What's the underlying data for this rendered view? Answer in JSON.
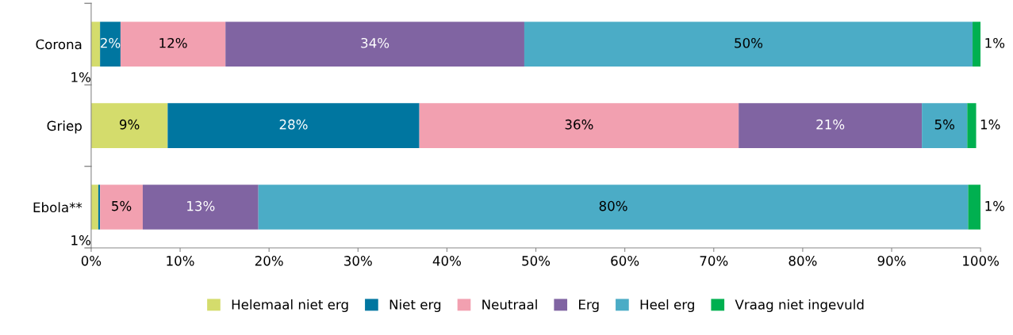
{
  "chart_data": {
    "type": "bar",
    "orientation": "horizontal",
    "stacked": true,
    "categories": [
      "Corona",
      "Griep",
      "Ebola**"
    ],
    "series": [
      {
        "name": "Helemaal niet erg",
        "color": "#d4dc6c",
        "values": [
          1.0,
          8.6,
          0.8
        ],
        "value_labels": [
          "1%",
          "9%",
          "1%"
        ]
      },
      {
        "name": "Niet erg",
        "color": "#0076a0",
        "values": [
          2.3,
          28.3,
          0.2
        ],
        "value_labels": [
          "2%",
          "28%",
          null
        ]
      },
      {
        "name": "Neutraal",
        "color": "#f2a0b0",
        "values": [
          11.8,
          35.9,
          4.8
        ],
        "value_labels": [
          "12%",
          "36%",
          "5%"
        ]
      },
      {
        "name": "Erg",
        "color": "#8064a2",
        "values": [
          33.6,
          20.6,
          13.0
        ],
        "value_labels": [
          "34%",
          "21%",
          "13%"
        ]
      },
      {
        "name": "Heel erg",
        "color": "#4bacc6",
        "values": [
          50.4,
          5.1,
          79.8
        ],
        "value_labels": [
          "50%",
          "5%",
          "80%"
        ]
      },
      {
        "name": "Vraag niet ingevuld",
        "color": "#00b050",
        "values": [
          0.9,
          1.0,
          1.4
        ],
        "value_labels": [
          "1%",
          "1%",
          "1%"
        ]
      }
    ],
    "xlim": [
      0,
      100
    ],
    "xticks": [
      {
        "value": 0,
        "label": "0%"
      },
      {
        "value": 10,
        "label": "10%"
      },
      {
        "value": 20,
        "label": "20%"
      },
      {
        "value": 30,
        "label": "30%"
      },
      {
        "value": 40,
        "label": "40%"
      },
      {
        "value": 50,
        "label": "50%"
      },
      {
        "value": 60,
        "label": "60%"
      },
      {
        "value": 70,
        "label": "70%"
      },
      {
        "value": 80,
        "label": "80%"
      },
      {
        "value": 90,
        "label": "90%"
      },
      {
        "value": 100,
        "label": "100%"
      }
    ],
    "grid": false,
    "legend": "bottom"
  }
}
